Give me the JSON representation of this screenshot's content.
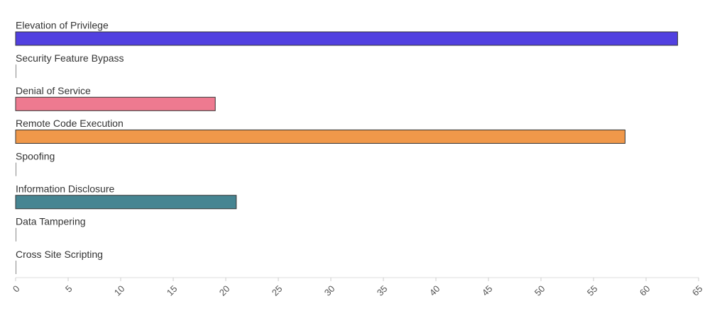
{
  "chart_data": {
    "type": "bar",
    "orientation": "horizontal",
    "categories": [
      "Elevation of Privilege",
      "Security Feature Bypass",
      "Denial of Service",
      "Remote Code Execution",
      "Spoofing",
      "Information Disclosure",
      "Data Tampering",
      "Cross Site Scripting"
    ],
    "values": [
      63,
      0,
      19,
      58,
      0,
      21,
      0,
      0
    ],
    "colors": [
      "#5140e0",
      "#7a7a7a",
      "#ee7a90",
      "#f0984a",
      "#7a7a7a",
      "#468592",
      "#7a7a7a",
      "#7a7a7a"
    ],
    "xlim": [
      0,
      65
    ],
    "xticks": [
      0,
      5,
      10,
      15,
      20,
      25,
      30,
      35,
      40,
      45,
      50,
      55,
      60,
      65
    ],
    "grid": false
  }
}
